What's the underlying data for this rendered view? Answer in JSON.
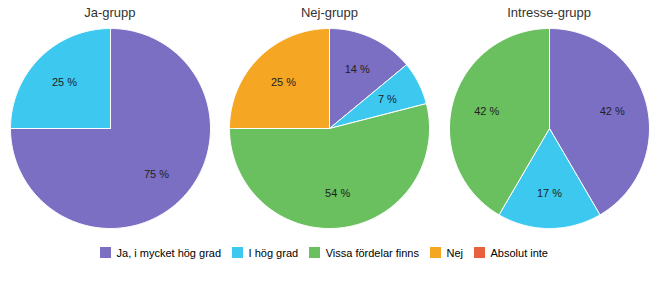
{
  "chart_data": [
    {
      "type": "pie",
      "title": "Ja-grupp",
      "categories": [
        "Ja, i mycket hög grad",
        "I hög grad",
        "Vissa fördelar finns",
        "Nej",
        "Absolut inte"
      ],
      "values": [
        75,
        25,
        null,
        null,
        null
      ],
      "value_labels": [
        "75 %",
        "25 %",
        null,
        null,
        null
      ],
      "colors": [
        "#7b6fc4",
        "#3dc8f0",
        "#6abf5e",
        "#f5a623",
        "#e8613c"
      ],
      "data_labels": true,
      "legend": "bottom"
    },
    {
      "type": "pie",
      "title": "Nej-grupp",
      "categories": [
        "Ja, i mycket hög grad",
        "I hög grad",
        "Vissa fördelar finns",
        "Nej",
        "Absolut inte"
      ],
      "values": [
        14,
        7,
        54,
        25,
        null
      ],
      "value_labels": [
        "14 %",
        "7 %",
        "54 %",
        "25 %",
        null
      ],
      "colors": [
        "#7b6fc4",
        "#3dc8f0",
        "#6abf5e",
        "#f5a623",
        "#e8613c"
      ],
      "data_labels": true,
      "legend": "bottom"
    },
    {
      "type": "pie",
      "title": "Intresse-grupp",
      "categories": [
        "Ja, i mycket hög grad",
        "I hög grad",
        "Vissa fördelar finns",
        "Nej",
        "Absolut inte"
      ],
      "values": [
        42,
        17,
        42,
        null,
        null
      ],
      "value_labels": [
        "42 %",
        "17 %",
        "42 %",
        null,
        null
      ],
      "colors": [
        "#7b6fc4",
        "#3dc8f0",
        "#6abf5e",
        "#f5a623",
        "#e8613c"
      ],
      "data_labels": true,
      "legend": "bottom"
    }
  ]
}
